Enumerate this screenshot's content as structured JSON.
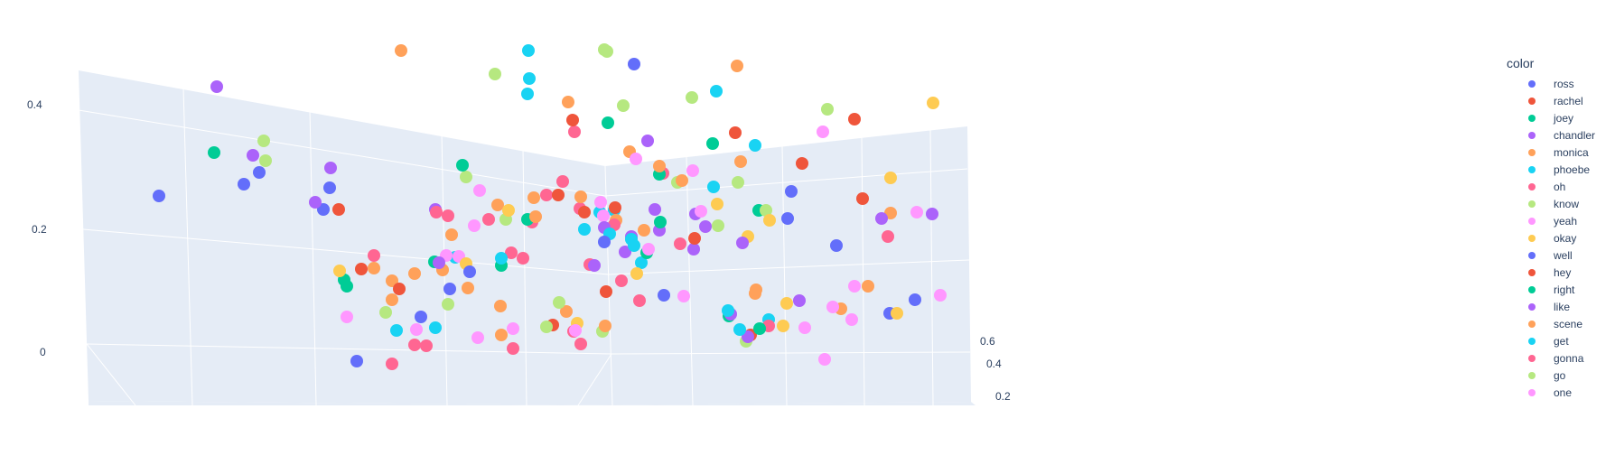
{
  "chart_data": {
    "type": "scatter3d",
    "legend": {
      "title": "color",
      "placement": "right",
      "items": [
        {
          "name": "ross",
          "color": "#636efa"
        },
        {
          "name": "rachel",
          "color": "#EF553B"
        },
        {
          "name": "joey",
          "color": "#00cc96"
        },
        {
          "name": "chandler",
          "color": "#ab63fa"
        },
        {
          "name": "monica",
          "color": "#FFA15A"
        },
        {
          "name": "phoebe",
          "color": "#19d3f3"
        },
        {
          "name": "oh",
          "color": "#FF6692"
        },
        {
          "name": "know",
          "color": "#B6E880"
        },
        {
          "name": "yeah",
          "color": "#FF97FF"
        },
        {
          "name": "okay",
          "color": "#FECB52"
        },
        {
          "name": "well",
          "color": "#636efa"
        },
        {
          "name": "hey",
          "color": "#EF553B"
        },
        {
          "name": "right",
          "color": "#00cc96"
        },
        {
          "name": "like",
          "color": "#ab63fa"
        },
        {
          "name": "scene",
          "color": "#FFA15A"
        },
        {
          "name": "get",
          "color": "#19d3f3"
        },
        {
          "name": "gonna",
          "color": "#FF6692"
        },
        {
          "name": "go",
          "color": "#B6E880"
        },
        {
          "name": "one",
          "color": "#FF97FF"
        }
      ]
    },
    "z_ticks": [
      "0.4",
      "0.2",
      "0"
    ],
    "y_ticks": [
      "0.6",
      "0.4",
      "0.2"
    ],
    "background": "#e5ecf6",
    "grid": true
  },
  "points": [
    [
      240,
      96,
      3
    ],
    [
      292,
      156,
      7
    ],
    [
      237,
      169,
      2
    ],
    [
      280,
      172,
      3
    ],
    [
      176,
      217,
      0
    ],
    [
      294,
      178,
      7
    ],
    [
      287,
      191,
      0
    ],
    [
      270,
      204,
      0
    ],
    [
      366,
      186,
      3
    ],
    [
      365,
      208,
      0
    ],
    [
      358,
      232,
      0
    ],
    [
      375,
      232,
      1
    ],
    [
      349,
      224,
      3
    ],
    [
      444,
      56,
      4
    ],
    [
      548,
      82,
      7
    ],
    [
      585,
      56,
      5
    ],
    [
      586,
      87,
      5
    ],
    [
      669,
      55,
      7
    ],
    [
      584,
      104,
      5
    ],
    [
      629,
      113,
      4
    ],
    [
      672,
      57,
      7
    ],
    [
      702,
      71,
      0
    ],
    [
      816,
      73,
      4
    ],
    [
      766,
      108,
      7
    ],
    [
      793,
      101,
      5
    ],
    [
      690,
      117,
      7
    ],
    [
      636,
      146,
      6
    ],
    [
      673,
      136,
      2
    ],
    [
      634,
      133,
      1
    ],
    [
      697,
      168,
      4
    ],
    [
      717,
      156,
      3
    ],
    [
      1033,
      114,
      9
    ],
    [
      916,
      121,
      7
    ],
    [
      946,
      132,
      1
    ],
    [
      911,
      146,
      8
    ],
    [
      888,
      181,
      1
    ],
    [
      876,
      212,
      0
    ],
    [
      836,
      161,
      5
    ],
    [
      820,
      179,
      4
    ],
    [
      814,
      147,
      1
    ],
    [
      789,
      159,
      2
    ],
    [
      734,
      192,
      6
    ],
    [
      730,
      193,
      2
    ],
    [
      750,
      202,
      7
    ],
    [
      767,
      189,
      8
    ],
    [
      755,
      200,
      4
    ],
    [
      704,
      176,
      8
    ],
    [
      730,
      184,
      4
    ],
    [
      770,
      237,
      3
    ],
    [
      790,
      207,
      5
    ],
    [
      817,
      202,
      7
    ],
    [
      840,
      233,
      2
    ],
    [
      848,
      233,
      7
    ],
    [
      852,
      244,
      9
    ],
    [
      872,
      242,
      0
    ],
    [
      955,
      220,
      1
    ],
    [
      986,
      236,
      4
    ],
    [
      986,
      197,
      9
    ],
    [
      1015,
      235,
      8
    ],
    [
      1032,
      237,
      3
    ],
    [
      976,
      242,
      3
    ],
    [
      926,
      272,
      0
    ],
    [
      983,
      262,
      6
    ],
    [
      828,
      262,
      9
    ],
    [
      794,
      226,
      9
    ],
    [
      795,
      250,
      7
    ],
    [
      776,
      234,
      8
    ],
    [
      768,
      276,
      3
    ],
    [
      781,
      251,
      3
    ],
    [
      753,
      270,
      6
    ],
    [
      725,
      232,
      3
    ],
    [
      730,
      255,
      3
    ],
    [
      680,
      233,
      5
    ],
    [
      699,
      262,
      3
    ],
    [
      682,
      244,
      4
    ],
    [
      680,
      249,
      6
    ],
    [
      713,
      255,
      4
    ],
    [
      681,
      230,
      1
    ],
    [
      664,
      235,
      5
    ],
    [
      647,
      254,
      5
    ],
    [
      642,
      231,
      6
    ],
    [
      591,
      219,
      4
    ],
    [
      551,
      227,
      4
    ],
    [
      560,
      243,
      7
    ],
    [
      589,
      246,
      6
    ],
    [
      584,
      243,
      2
    ],
    [
      563,
      233,
      9
    ],
    [
      579,
      286,
      6
    ],
    [
      555,
      294,
      2
    ],
    [
      541,
      243,
      6
    ],
    [
      525,
      250,
      8
    ],
    [
      500,
      260,
      4
    ],
    [
      504,
      285,
      5
    ],
    [
      508,
      284,
      8
    ],
    [
      516,
      292,
      9
    ],
    [
      516,
      196,
      7
    ],
    [
      512,
      183,
      2
    ],
    [
      496,
      239,
      6
    ],
    [
      482,
      232,
      3
    ],
    [
      434,
      311,
      4
    ],
    [
      518,
      319,
      4
    ],
    [
      531,
      211,
      8
    ],
    [
      605,
      216,
      6
    ],
    [
      593,
      240,
      4
    ],
    [
      618,
      216,
      1
    ],
    [
      623,
      201,
      6
    ],
    [
      665,
      224,
      8
    ],
    [
      643,
      218,
      4
    ],
    [
      668,
      239,
      8
    ],
    [
      669,
      252,
      3
    ],
    [
      675,
      259,
      5
    ],
    [
      669,
      268,
      0
    ],
    [
      653,
      293,
      6
    ],
    [
      692,
      279,
      3
    ],
    [
      699,
      265,
      5
    ],
    [
      702,
      272,
      5
    ],
    [
      688,
      311,
      6
    ],
    [
      710,
      291,
      5
    ],
    [
      716,
      280,
      2
    ],
    [
      705,
      303,
      9
    ],
    [
      718,
      276,
      8
    ],
    [
      731,
      246,
      2
    ],
    [
      647,
      235,
      1
    ],
    [
      671,
      323,
      1
    ],
    [
      612,
      360,
      1
    ],
    [
      627,
      345,
      4
    ],
    [
      658,
      294,
      3
    ],
    [
      566,
      280,
      6
    ],
    [
      555,
      286,
      5
    ],
    [
      554,
      339,
      4
    ],
    [
      494,
      283,
      8
    ],
    [
      498,
      320,
      0
    ],
    [
      496,
      337,
      7
    ],
    [
      414,
      283,
      6
    ],
    [
      434,
      332,
      4
    ],
    [
      483,
      235,
      6
    ],
    [
      466,
      351,
      0
    ],
    [
      481,
      290,
      2
    ],
    [
      461,
      365,
      8
    ],
    [
      427,
      346,
      7
    ],
    [
      381,
      310,
      2
    ],
    [
      414,
      297,
      4
    ],
    [
      400,
      298,
      1
    ],
    [
      376,
      300,
      9
    ],
    [
      384,
      317,
      2
    ],
    [
      442,
      320,
      1
    ],
    [
      490,
      299,
      4
    ],
    [
      486,
      291,
      3
    ],
    [
      459,
      303,
      4
    ],
    [
      520,
      301,
      0
    ],
    [
      384,
      351,
      8
    ],
    [
      568,
      386,
      6
    ],
    [
      395,
      400,
      0
    ],
    [
      439,
      366,
      5
    ],
    [
      459,
      382,
      6
    ],
    [
      434,
      403,
      6
    ],
    [
      472,
      383,
      6
    ],
    [
      482,
      363,
      5
    ],
    [
      529,
      374,
      8
    ],
    [
      555,
      371,
      4
    ],
    [
      568,
      364,
      8
    ],
    [
      635,
      367,
      6
    ],
    [
      643,
      381,
      6
    ],
    [
      667,
      367,
      7
    ],
    [
      708,
      333,
      6
    ],
    [
      735,
      327,
      0
    ],
    [
      639,
      358,
      9
    ],
    [
      619,
      335,
      7
    ],
    [
      637,
      366,
      8
    ],
    [
      670,
      361,
      4
    ],
    [
      605,
      362,
      7
    ],
    [
      757,
      328,
      8
    ],
    [
      807,
      350,
      2
    ],
    [
      831,
      371,
      1
    ],
    [
      851,
      354,
      5
    ],
    [
      867,
      361,
      9
    ],
    [
      826,
      378,
      7
    ],
    [
      851,
      361,
      6
    ],
    [
      841,
      364,
      2
    ],
    [
      931,
      342,
      4
    ],
    [
      836,
      325,
      4
    ],
    [
      837,
      321,
      4
    ],
    [
      769,
      264,
      1
    ],
    [
      809,
      348,
      3
    ],
    [
      885,
      333,
      3
    ],
    [
      891,
      363,
      8
    ],
    [
      943,
      354,
      8
    ],
    [
      961,
      317,
      4
    ],
    [
      985,
      347,
      0
    ],
    [
      993,
      347,
      9
    ],
    [
      1041,
      327,
      8
    ],
    [
      1013,
      332,
      0
    ],
    [
      946,
      317,
      8
    ],
    [
      922,
      340,
      8
    ],
    [
      913,
      398,
      8
    ],
    [
      828,
      373,
      3
    ],
    [
      822,
      269,
      3
    ],
    [
      871,
      336,
      9
    ],
    [
      819,
      365,
      5
    ],
    [
      806,
      344,
      5
    ]
  ]
}
